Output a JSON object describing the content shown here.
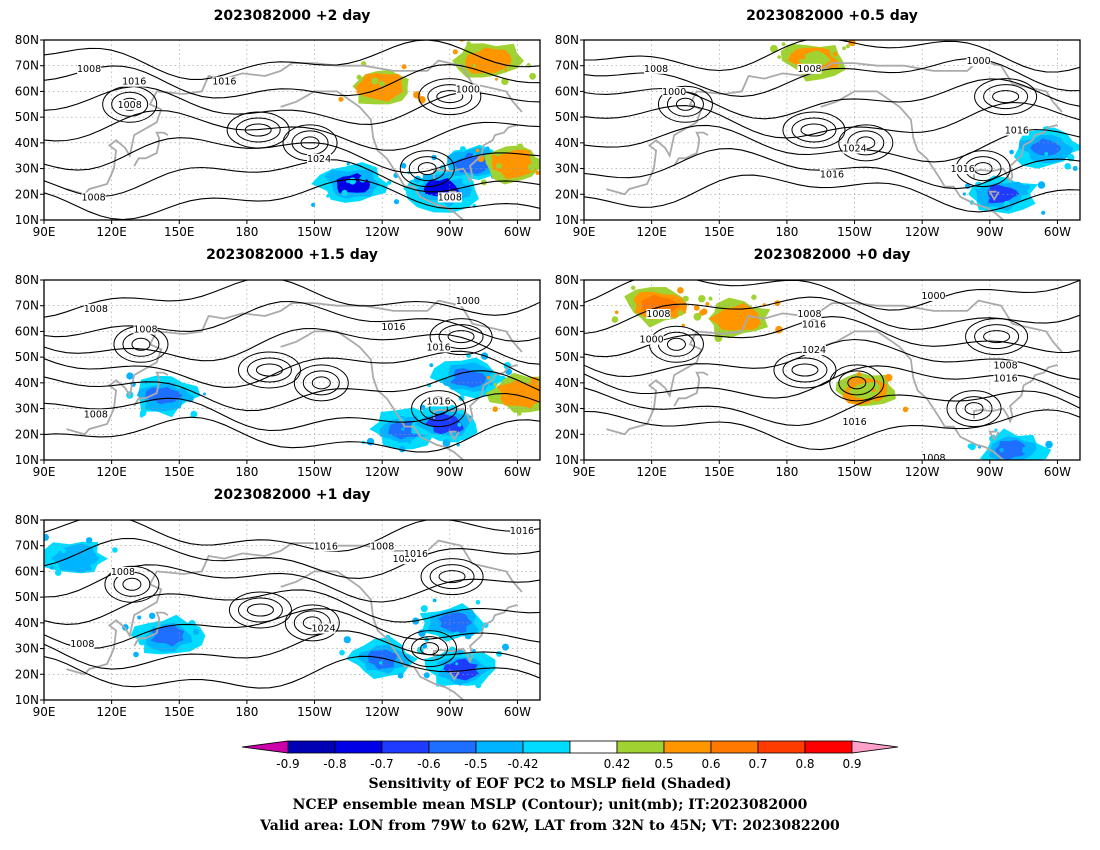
{
  "chart_data": [
    {
      "type": "heatmap",
      "title": "2023082000 +2 day",
      "x_ticks": [
        "90E",
        "120E",
        "150E",
        "180",
        "150W",
        "120W",
        "90W",
        "60W"
      ],
      "y_ticks": [
        "80N",
        "70N",
        "60N",
        "50N",
        "40N",
        "30N",
        "20N",
        "10N"
      ],
      "lon_range": [
        "90E",
        "50W"
      ],
      "lat_range": [
        "10N",
        "80N"
      ],
      "contour_labels": [
        "1008",
        "1016",
        "1016",
        "1008",
        "1000",
        "1024",
        "1008",
        "1008"
      ],
      "shaded_features": [
        {
          "sign": "negative",
          "center": {
            "lon": -133,
            "lat": 24
          },
          "level": -0.8
        },
        {
          "sign": "negative",
          "center": {
            "lon": -93,
            "lat": 22
          },
          "level": -0.8
        },
        {
          "sign": "negative",
          "center": {
            "lon": -80,
            "lat": 32
          },
          "level": -0.6
        },
        {
          "sign": "positive",
          "center": {
            "lon": -62,
            "lat": 32
          },
          "level": 0.6
        },
        {
          "sign": "positive",
          "center": {
            "lon": -72,
            "lat": 72
          },
          "level": 0.6
        },
        {
          "sign": "positive",
          "center": {
            "lon": -120,
            "lat": 62
          },
          "level": 0.6
        }
      ]
    },
    {
      "type": "heatmap",
      "title": "2023082000 +0.5 day",
      "x_ticks": [
        "90E",
        "120E",
        "150E",
        "180",
        "150W",
        "120W",
        "90W",
        "60W"
      ],
      "y_ticks": [
        "80N",
        "70N",
        "60N",
        "50N",
        "40N",
        "30N",
        "20N",
        "10N"
      ],
      "lon_range": [
        "90E",
        "50W"
      ],
      "lat_range": [
        "10N",
        "80N"
      ],
      "contour_labels": [
        "1008",
        "1000",
        "1008",
        "1000",
        "1024",
        "1016",
        "1016",
        "1016"
      ],
      "shaded_features": [
        {
          "sign": "negative",
          "center": {
            "lon": -85,
            "lat": 20
          },
          "level": -0.7
        },
        {
          "sign": "negative",
          "center": {
            "lon": -65,
            "lat": 38
          },
          "level": -0.6
        },
        {
          "sign": "positive",
          "center": {
            "lon": -168,
            "lat": 72
          },
          "level": 0.5
        }
      ]
    },
    {
      "type": "heatmap",
      "title": "2023082000 +1.5 day",
      "x_ticks": [
        "90E",
        "120E",
        "150E",
        "180",
        "150W",
        "120W",
        "90W",
        "60W"
      ],
      "y_ticks": [
        "80N",
        "70N",
        "60N",
        "50N",
        "40N",
        "30N",
        "20N",
        "10N"
      ],
      "lon_range": [
        "90E",
        "50W"
      ],
      "lat_range": [
        "10N",
        "80N"
      ],
      "contour_labels": [
        "1008",
        "1008",
        "1016",
        "1016",
        "1000",
        "1008",
        "1016"
      ],
      "shaded_features": [
        {
          "sign": "negative",
          "center": {
            "lon": -110,
            "lat": 22
          },
          "level": -0.6
        },
        {
          "sign": "negative",
          "center": {
            "lon": -92,
            "lat": 24
          },
          "level": -0.7
        },
        {
          "sign": "negative",
          "center": {
            "lon": -82,
            "lat": 42
          },
          "level": -0.6
        },
        {
          "sign": "negative",
          "center": {
            "lon": 143,
            "lat": 35
          },
          "level": -0.6
        },
        {
          "sign": "positive",
          "center": {
            "lon": -58,
            "lat": 36
          },
          "level": 0.6
        }
      ]
    },
    {
      "type": "heatmap",
      "title": "2023082000 +0 day",
      "x_ticks": [
        "90E",
        "120E",
        "150E",
        "180",
        "150W",
        "120W",
        "90W",
        "60W"
      ],
      "y_ticks": [
        "80N",
        "70N",
        "60N",
        "50N",
        "40N",
        "30N",
        "20N",
        "10N"
      ],
      "lon_range": [
        "90E",
        "50W"
      ],
      "lat_range": [
        "10N",
        "80N"
      ],
      "contour_labels": [
        "1008",
        "1000",
        "1008",
        "1016",
        "1024",
        "1000",
        "1008",
        "1016",
        "1016",
        "1008"
      ],
      "shaded_features": [
        {
          "sign": "positive",
          "center": {
            "lon": 123,
            "lat": 70
          },
          "level": 0.7
        },
        {
          "sign": "positive",
          "center": {
            "lon": 158,
            "lat": 65
          },
          "level": 0.6
        },
        {
          "sign": "negative",
          "center": {
            "lon": -80,
            "lat": 14
          },
          "level": -0.6
        },
        {
          "sign": "positive",
          "center": {
            "lon": -145,
            "lat": 37
          },
          "level": 0.5
        }
      ]
    },
    {
      "type": "heatmap",
      "title": "2023082000 +1 day",
      "x_ticks": [
        "90E",
        "120E",
        "150E",
        "180",
        "150W",
        "120W",
        "90W",
        "60W"
      ],
      "y_ticks": [
        "80N",
        "70N",
        "60N",
        "50N",
        "40N",
        "30N",
        "20N",
        "10N"
      ],
      "lon_range": [
        "90E",
        "50W"
      ],
      "lat_range": [
        "10N",
        "80N"
      ],
      "contour_labels": [
        "1016",
        "1016",
        "1008",
        "1000",
        "1016",
        "1008",
        "1024",
        "1008"
      ],
      "shaded_features": [
        {
          "sign": "negative",
          "center": {
            "lon": -85,
            "lat": 22
          },
          "level": -0.7
        },
        {
          "sign": "negative",
          "center": {
            "lon": -88,
            "lat": 40
          },
          "level": -0.6
        },
        {
          "sign": "negative",
          "center": {
            "lon": -120,
            "lat": 26
          },
          "level": -0.6
        },
        {
          "sign": "negative",
          "center": {
            "lon": 145,
            "lat": 35
          },
          "level": -0.6
        },
        {
          "sign": "negative",
          "center": {
            "lon": 104,
            "lat": 65
          },
          "level": -0.5
        }
      ]
    }
  ],
  "colorbar": {
    "labels": [
      "-0.9",
      "-0.8",
      "-0.7",
      "-0.6",
      "-0.5",
      "-0.42",
      "0.42",
      "0.5",
      "0.6",
      "0.7",
      "0.8",
      "0.9"
    ],
    "colors": [
      "#0000b4",
      "#0000e6",
      "#1e3cff",
      "#1e6eff",
      "#00b4ff",
      "#00dcff",
      "#ffffff",
      "#a0d232",
      "#ff9600",
      "#ff7800",
      "#ff3c00",
      "#ff0000"
    ],
    "low_extension_color": "#cc00aa",
    "high_extension_color": "#ffa0c8"
  },
  "caption": {
    "line1": "Sensitivity of EOF PC2 to MSLP field (Shaded)",
    "line2": "NCEP ensemble mean MSLP (Contour); unit(mb); IT:2023082000",
    "line3": "Valid area: LON from 79W to 62W, LAT from 32N to 45N; VT: 2023082200"
  }
}
